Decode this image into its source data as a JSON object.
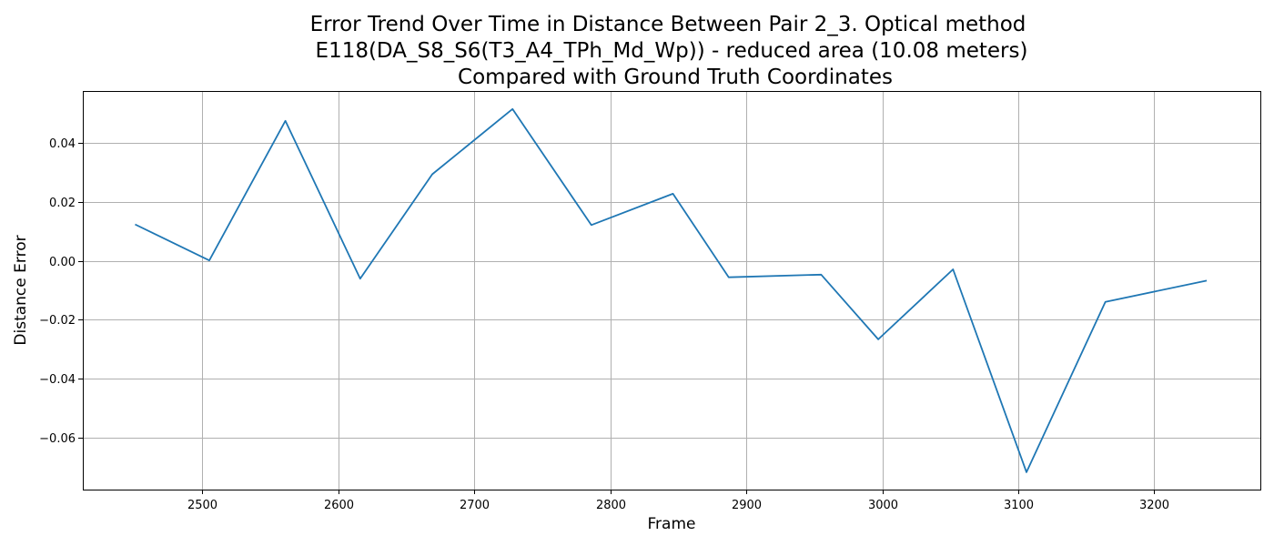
{
  "chart_data": {
    "type": "line",
    "title_lines": [
      "Error Trend Over Time in Distance Between Pair 2_3. Optical method",
      "E118(DA_S8_S6(T3_A4_TPh_Md_Wp)) - reduced area (10.08 meters)",
      "Compared with Ground Truth Coordinates"
    ],
    "xlabel": "Frame",
    "ylabel": "Distance Error",
    "xlim": [
      2412,
      3278
    ],
    "ylim": [
      -0.0775,
      0.0575
    ],
    "xticks": [
      2500,
      2600,
      2700,
      2800,
      2900,
      3000,
      3100,
      3200
    ],
    "xtick_labels": [
      "2500",
      "2600",
      "2700",
      "2800",
      "2900",
      "3000",
      "3100",
      "3200"
    ],
    "yticks": [
      0.04,
      0.02,
      0.0,
      -0.02,
      -0.04,
      -0.06
    ],
    "ytick_labels": [
      "0.04",
      "0.02",
      "0.00",
      "−0.02",
      "−0.04",
      "−0.06"
    ],
    "grid": true,
    "series": [
      {
        "color": "#1f77b4",
        "x": [
          2451,
          2505,
          2561,
          2616,
          2669,
          2728,
          2786,
          2846,
          2887,
          2955,
          2997,
          3052,
          3106,
          3164,
          3238
        ],
        "y": [
          0.0122,
          0.0001,
          0.0474,
          -0.0061,
          0.0293,
          0.0514,
          0.0121,
          0.0227,
          -0.0056,
          -0.0047,
          -0.0266,
          -0.0029,
          -0.0716,
          -0.0139,
          -0.0068
        ]
      }
    ]
  }
}
